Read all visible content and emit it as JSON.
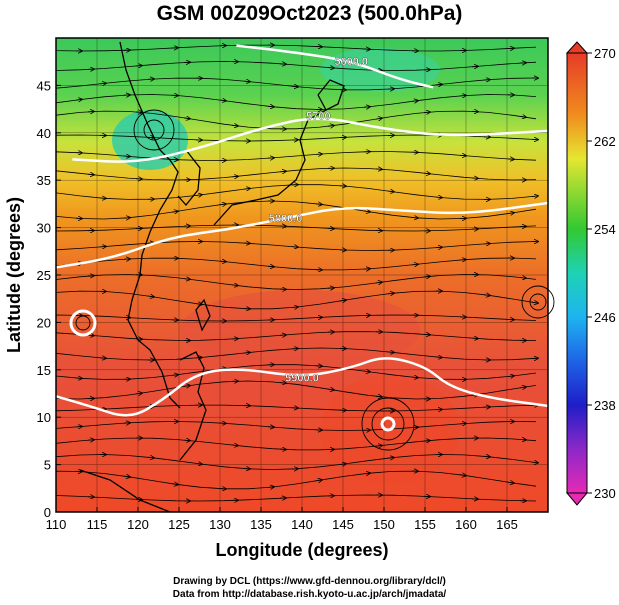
{
  "title": "GSM 00Z09Oct2023 (500.0hPa)",
  "axes": {
    "xlabel": "Longitude (degrees)",
    "ylabel": "Latitude  (degrees)",
    "xlim": [
      110,
      170
    ],
    "ylim": [
      0,
      50
    ],
    "xticks": [
      110,
      115,
      120,
      125,
      130,
      135,
      140,
      145,
      150,
      155,
      160,
      165
    ],
    "yticks": [
      0,
      5,
      10,
      15,
      20,
      25,
      30,
      35,
      40,
      45
    ]
  },
  "colorbar": {
    "min": 230,
    "max": 270,
    "ticks": [
      230,
      238,
      246,
      254,
      262,
      270
    ],
    "colors": [
      "#e62ab4",
      "#1e1ec8",
      "#1e8cf0",
      "#1ed2b4",
      "#32c832",
      "#e6e632",
      "#f08c1e",
      "#e63c1e",
      "#e6503c"
    ]
  },
  "contours": [
    {
      "label": "5700",
      "lat_at": [
        [
          112,
          37.2
        ],
        [
          120,
          36.8
        ],
        [
          128,
          38.5
        ],
        [
          135,
          40.5
        ],
        [
          142,
          41.8
        ],
        [
          150,
          40.4
        ],
        [
          158,
          39.6
        ],
        [
          170,
          40.2
        ]
      ]
    },
    {
      "label": "5800.0",
      "lat_at": [
        [
          110,
          25.8
        ],
        [
          117,
          26.8
        ],
        [
          124,
          29.0
        ],
        [
          131,
          29.8
        ],
        [
          138,
          31.0
        ],
        [
          145,
          32.2
        ],
        [
          152,
          31.8
        ],
        [
          160,
          31.4
        ],
        [
          170,
          32.6
        ]
      ]
    },
    {
      "label": "5900.0",
      "lat_at": [
        [
          110,
          12.2
        ],
        [
          114,
          11.2
        ],
        [
          119,
          9.8
        ],
        [
          123,
          11.8
        ],
        [
          127,
          14.6
        ],
        [
          132,
          15.2
        ],
        [
          140,
          14.2
        ],
        [
          146,
          15.2
        ],
        [
          150,
          16.5
        ],
        [
          155,
          15.4
        ],
        [
          158,
          13.2
        ],
        [
          163,
          12.0
        ],
        [
          170,
          11.2
        ]
      ]
    },
    {
      "label": "5600.0",
      "lat_at": [
        [
          132,
          49.2
        ],
        [
          138,
          48.6
        ],
        [
          146,
          47.6
        ],
        [
          152,
          45.6
        ],
        [
          156,
          44.8
        ]
      ]
    }
  ],
  "credit": {
    "drawing": "Drawing by DCL (https://www.gfd-dennou.org/library/dcl/)",
    "data": "Data from http://database.rish.kyoto-u.ac.jp/arch/jmadata/"
  }
}
